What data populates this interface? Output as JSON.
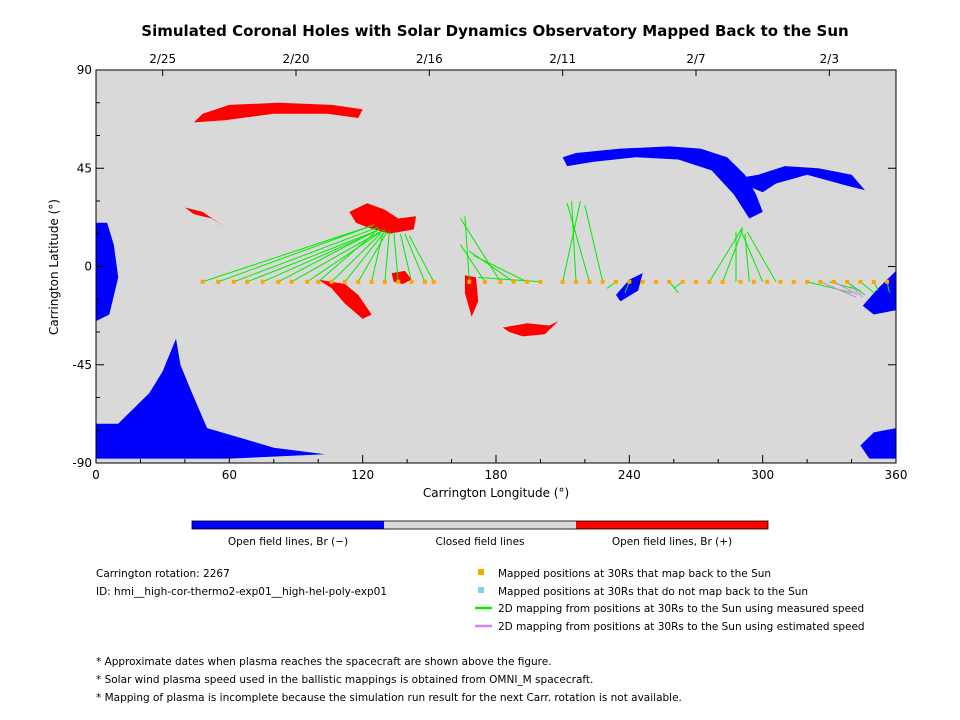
{
  "chart_data": {
    "type": "scatter",
    "title": "Simulated Coronal Holes with Solar Dynamics Observatory Mapped Back to the Sun",
    "xlabel": "Carrington Longitude (°)",
    "ylabel": "Carrington Latitude (°)",
    "xlim": [
      0,
      360
    ],
    "ylim": [
      -90,
      90
    ],
    "x_ticks": [
      "0",
      "60",
      "120",
      "180",
      "240",
      "300",
      "360"
    ],
    "y_ticks": [
      "90",
      "45",
      "0",
      "-45",
      "-90"
    ],
    "top_axis": {
      "label_positions_longitude": [
        30,
        90,
        150,
        210,
        270,
        330
      ],
      "labels": [
        "2/25",
        "2/20",
        "2/16",
        "2/11",
        "2/7",
        "2/3"
      ]
    },
    "background_color": "#d9d9d9",
    "colorbar": {
      "labels": [
        "Open field lines, Br (−)",
        "Closed field lines",
        "Open field lines, Br (+)"
      ],
      "colors": [
        "#0000ff",
        "#d9d9d9",
        "#ff0000"
      ]
    },
    "mapped_positions_lat": -7,
    "mapped_positions_lon": [
      48,
      55,
      62,
      68,
      75,
      82,
      88,
      95,
      100,
      106,
      112,
      118,
      124,
      130,
      136,
      142,
      148,
      152,
      168,
      175,
      182,
      188,
      194,
      200,
      210,
      216,
      222,
      228,
      234,
      240,
      246,
      252,
      258,
      264,
      270,
      276,
      282,
      290,
      296,
      302,
      308,
      314,
      320,
      326,
      332,
      338,
      344,
      350,
      356
    ],
    "mapping_lines_measured": [
      [
        [
          48,
          -7
        ],
        [
          125,
          19
        ]
      ],
      [
        [
          55,
          -7
        ],
        [
          125,
          19
        ]
      ],
      [
        [
          62,
          -7
        ],
        [
          127,
          18
        ]
      ],
      [
        [
          68,
          -7
        ],
        [
          128,
          17
        ]
      ],
      [
        [
          75,
          -7
        ],
        [
          126,
          16
        ]
      ],
      [
        [
          82,
          -7
        ],
        [
          127,
          17
        ]
      ],
      [
        [
          88,
          -7
        ],
        [
          128,
          16
        ]
      ],
      [
        [
          95,
          -7
        ],
        [
          130,
          17
        ]
      ],
      [
        [
          100,
          -7
        ],
        [
          125,
          15
        ]
      ],
      [
        [
          106,
          -7
        ],
        [
          128,
          15
        ]
      ],
      [
        [
          112,
          -7
        ],
        [
          130,
          16
        ]
      ],
      [
        [
          118,
          -7
        ],
        [
          131,
          16
        ]
      ],
      [
        [
          124,
          -7
        ],
        [
          129,
          15
        ]
      ],
      [
        [
          130,
          -7
        ],
        [
          132,
          16
        ]
      ],
      [
        [
          136,
          -7
        ],
        [
          134,
          16
        ]
      ],
      [
        [
          142,
          -7
        ],
        [
          137,
          15
        ]
      ],
      [
        [
          148,
          -7
        ],
        [
          139,
          15
        ]
      ],
      [
        [
          152,
          -7
        ],
        [
          141,
          14
        ]
      ],
      [
        [
          168,
          -7
        ],
        [
          166,
          23
        ]
      ],
      [
        [
          175,
          -7
        ],
        [
          164,
          10
        ]
      ],
      [
        [
          182,
          -7
        ],
        [
          164,
          22
        ]
      ],
      [
        [
          188,
          -7
        ],
        [
          168,
          7
        ]
      ],
      [
        [
          194,
          -7
        ],
        [
          170,
          5
        ]
      ],
      [
        [
          200,
          -7
        ],
        [
          172,
          -5
        ]
      ],
      [
        [
          210,
          -7
        ],
        [
          218,
          30
        ]
      ],
      [
        [
          216,
          -7
        ],
        [
          214,
          30
        ]
      ],
      [
        [
          222,
          -7
        ],
        [
          212,
          29
        ]
      ],
      [
        [
          228,
          -7
        ],
        [
          220,
          28
        ]
      ],
      [
        [
          234,
          -7
        ],
        [
          230,
          -10
        ]
      ],
      [
        [
          240,
          -7
        ],
        [
          238,
          -12
        ]
      ],
      [
        [
          258,
          -7
        ],
        [
          262,
          -12
        ]
      ],
      [
        [
          264,
          -7
        ],
        [
          260,
          -10
        ]
      ],
      [
        [
          276,
          -7
        ],
        [
          291,
          18
        ]
      ],
      [
        [
          282,
          -7
        ],
        [
          291,
          17
        ]
      ],
      [
        [
          288,
          -7
        ],
        [
          288,
          16
        ]
      ],
      [
        [
          294,
          -7
        ],
        [
          292,
          15
        ]
      ],
      [
        [
          300,
          -7
        ],
        [
          290,
          17
        ]
      ],
      [
        [
          306,
          -7
        ],
        [
          293,
          16
        ]
      ],
      [
        [
          320,
          -7
        ],
        [
          340,
          -12
        ]
      ],
      [
        [
          330,
          -7
        ],
        [
          344,
          -11
        ]
      ],
      [
        [
          338,
          -7
        ],
        [
          346,
          -13
        ]
      ],
      [
        [
          344,
          -7
        ],
        [
          350,
          -12
        ]
      ],
      [
        [
          350,
          -7
        ],
        [
          352,
          -11
        ]
      ],
      [
        [
          356,
          -7
        ],
        [
          357,
          -12
        ]
      ]
    ],
    "mapping_lines_estimated": [
      [
        [
          326,
          -7
        ],
        [
          342,
          -14
        ]
      ],
      [
        [
          332,
          -7
        ],
        [
          343,
          -13
        ]
      ],
      [
        [
          338,
          -7
        ],
        [
          345,
          -14
        ]
      ]
    ],
    "legend": [
      {
        "symbol": "square",
        "color": "#ffa500",
        "label": "Mapped positions at 30Rs that map back to the Sun"
      },
      {
        "symbol": "square",
        "color": "#87ceeb",
        "label": "Mapped positions at 30Rs that do not map back to the Sun"
      },
      {
        "symbol": "line",
        "color": "#00ee00",
        "label": "2D mapping from positions at 30Rs to the Sun using measured speed"
      },
      {
        "symbol": "line",
        "color": "#cc88ee",
        "label": "2D mapping from positions at 30Rs to the Sun using estimated speed"
      }
    ],
    "regions": [
      {
        "polarity": "negative",
        "color": "#0000ff",
        "points": [
          [
            210,
            50
          ],
          [
            216,
            52
          ],
          [
            236,
            54
          ],
          [
            258,
            55
          ],
          [
            272,
            54
          ],
          [
            284,
            50
          ],
          [
            292,
            42
          ],
          [
            297,
            33
          ],
          [
            300,
            25
          ],
          [
            294,
            22
          ],
          [
            287,
            33
          ],
          [
            277,
            44
          ],
          [
            262,
            49
          ],
          [
            243,
            50
          ],
          [
            224,
            48
          ],
          [
            212,
            46
          ]
        ]
      },
      {
        "polarity": "negative",
        "color": "#0000ff",
        "points": [
          [
            286,
            40
          ],
          [
            298,
            42
          ],
          [
            310,
            46
          ],
          [
            325,
            45
          ],
          [
            340,
            42
          ],
          [
            346,
            35
          ],
          [
            338,
            37
          ],
          [
            320,
            42
          ],
          [
            306,
            38
          ],
          [
            300,
            34
          ]
        ]
      },
      {
        "polarity": "negative",
        "color": "#0000ff",
        "points": [
          [
            0,
            -72
          ],
          [
            10,
            -72
          ],
          [
            24,
            -58
          ],
          [
            30,
            -48
          ],
          [
            36,
            -33
          ],
          [
            38,
            -45
          ],
          [
            42,
            -55
          ],
          [
            50,
            -74
          ],
          [
            80,
            -83
          ],
          [
            103,
            -86
          ],
          [
            60,
            -88
          ],
          [
            0,
            -88
          ]
        ]
      },
      {
        "polarity": "negative",
        "color": "#0000ff",
        "points": [
          [
            0,
            20
          ],
          [
            5,
            20
          ],
          [
            8,
            10
          ],
          [
            10,
            -5
          ],
          [
            6,
            -22
          ],
          [
            0,
            -25
          ]
        ]
      },
      {
        "polarity": "negative",
        "color": "#0000ff",
        "points": [
          [
            345,
            -18
          ],
          [
            352,
            -10
          ],
          [
            360,
            -2
          ],
          [
            360,
            -20
          ],
          [
            350,
            -22
          ]
        ]
      },
      {
        "polarity": "negative",
        "color": "#0000ff",
        "points": [
          [
            344,
            -82
          ],
          [
            350,
            -76
          ],
          [
            360,
            -74
          ],
          [
            360,
            -88
          ],
          [
            348,
            -88
          ]
        ]
      },
      {
        "polarity": "negative",
        "color": "#0000ff",
        "points": [
          [
            234,
            -13
          ],
          [
            240,
            -6
          ],
          [
            246,
            -3
          ],
          [
            244,
            -11
          ],
          [
            236,
            -16
          ]
        ]
      },
      {
        "polarity": "positive",
        "color": "#ff0000",
        "points": [
          [
            44,
            66
          ],
          [
            48,
            70
          ],
          [
            60,
            74
          ],
          [
            82,
            75
          ],
          [
            106,
            74
          ],
          [
            120,
            72
          ],
          [
            118,
            68
          ],
          [
            104,
            70
          ],
          [
            80,
            70
          ],
          [
            58,
            67
          ]
        ]
      },
      {
        "polarity": "positive",
        "color": "#ff0000",
        "points": [
          [
            114,
            25
          ],
          [
            122,
            29
          ],
          [
            130,
            26
          ],
          [
            136,
            22
          ],
          [
            144,
            23
          ],
          [
            143,
            17
          ],
          [
            132,
            15
          ],
          [
            122,
            18
          ],
          [
            117,
            20
          ]
        ]
      },
      {
        "polarity": "positive",
        "color": "#ff0000",
        "points": [
          [
            100,
            -6
          ],
          [
            106,
            -10
          ],
          [
            112,
            -17
          ],
          [
            120,
            -24
          ],
          [
            124,
            -22
          ],
          [
            118,
            -13
          ],
          [
            112,
            -8
          ]
        ]
      },
      {
        "polarity": "positive",
        "color": "#ff0000",
        "points": [
          [
            40,
            27
          ],
          [
            48,
            25
          ],
          [
            58,
            18
          ],
          [
            52,
            22
          ],
          [
            44,
            24
          ]
        ]
      },
      {
        "polarity": "positive",
        "color": "#ff0000",
        "points": [
          [
            183,
            -28
          ],
          [
            194,
            -26
          ],
          [
            204,
            -27
          ],
          [
            208,
            -25
          ],
          [
            202,
            -31
          ],
          [
            192,
            -32
          ],
          [
            186,
            -30
          ]
        ]
      },
      {
        "polarity": "positive",
        "color": "#ff0000",
        "points": [
          [
            166,
            -4
          ],
          [
            171,
            -5
          ],
          [
            172,
            -16
          ],
          [
            169,
            -23
          ],
          [
            166,
            -12
          ]
        ]
      },
      {
        "polarity": "positive",
        "color": "#ff0000",
        "points": [
          [
            133,
            -3
          ],
          [
            139,
            -2
          ],
          [
            142,
            -6
          ],
          [
            138,
            -8
          ],
          [
            134,
            -7
          ]
        ]
      }
    ]
  },
  "info": {
    "rotation": "Carrington rotation: 2267",
    "id": "ID: hmi__high-cor-thermo2-exp01__high-hel-poly-exp01"
  },
  "notes": [
    "* Approximate dates when plasma reaches the spacecraft are shown above the figure.",
    "* Solar wind plasma speed used in the ballistic mappings is obtained from OMNI_M spacecraft.",
    "* Mapping of plasma is incomplete because the simulation run result for the next Carr. rotation is not available."
  ]
}
